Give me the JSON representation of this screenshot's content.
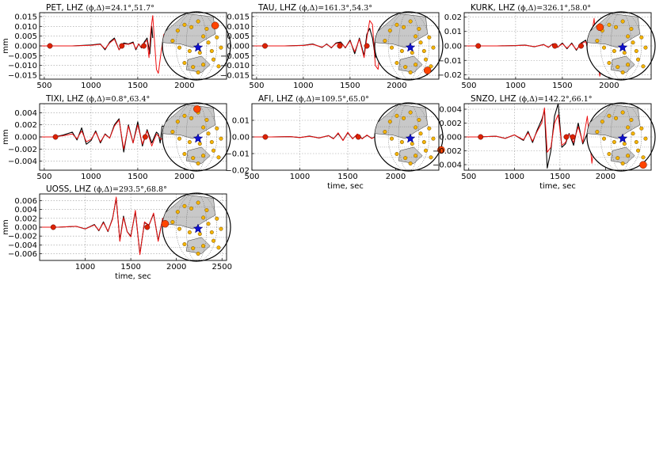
{
  "figure": {
    "y_unit_label": "mm",
    "x_axis_label": "time, sec"
  },
  "colors": {
    "observed": "#000000",
    "synthetic": "#ee1111",
    "marker": "#dd2200",
    "station_dot": "#f4b400",
    "event_star": "#1010cc",
    "land": "#c8c8c8",
    "highlight_station": "#ff4400"
  },
  "chart_data": [
    {
      "type": "line",
      "title": "PET, LHZ",
      "title_math": "(ϕ,Δ)=24.1°,51.7°",
      "xlim": [
        450,
        2450
      ],
      "ylim": [
        -0.017,
        0.017
      ],
      "xticks": [
        500,
        1000,
        1500,
        2000
      ],
      "yticks": [
        -0.015,
        -0.01,
        -0.005,
        0.0,
        0.005,
        0.01,
        0.015
      ],
      "ytick_labels": [
        "−0.015",
        "−0.010",
        "−0.005",
        "0.000",
        "0.005",
        "0.010",
        "0.015"
      ],
      "show_ylabel": true,
      "show_xlabel": false,
      "phase_markers": [
        {
          "t": 560,
          "v": 0.0
        },
        {
          "t": 1330,
          "v": 0.0
        },
        {
          "t": 1565,
          "v": 0.0
        }
      ],
      "series": [
        {
          "role": "observed",
          "x": [
            450,
            600,
            800,
            1000,
            1100,
            1150,
            1200,
            1250,
            1300,
            1350,
            1400,
            1450,
            1480,
            1510,
            1540,
            1570,
            1600,
            1630,
            1650,
            1660
          ],
          "y": [
            0,
            0,
            0,
            0.0005,
            0.001,
            -0.002,
            0.002,
            0.004,
            -0.002,
            0.0015,
            0.001,
            0.002,
            -0.002,
            0.001,
            -0.001,
            0.002,
            0.004,
            -0.004,
            0.01,
            0.004
          ]
        },
        {
          "role": "synthetic",
          "x": [
            450,
            600,
            800,
            1000,
            1100,
            1150,
            1200,
            1250,
            1300,
            1350,
            1400,
            1450,
            1480,
            1510,
            1540,
            1570,
            1600,
            1620,
            1640,
            1660,
            1680,
            1700,
            1720,
            1750,
            1780,
            1800,
            1830,
            1860
          ],
          "y": [
            0,
            0,
            0,
            0.0003,
            0.0008,
            -0.0015,
            0.0015,
            0.0035,
            -0.002,
            0.001,
            0.0008,
            0.0015,
            -0.0015,
            0.001,
            -0.0008,
            0.0015,
            0.003,
            -0.006,
            0.008,
            0.0155,
            0.002,
            -0.012,
            -0.014,
            -0.003,
            0.006,
            0.002,
            -0.004,
            0.0
          ]
        }
      ]
    },
    {
      "type": "line",
      "title": "TAU, LHZ",
      "title_math": "(ϕ,Δ)=161.3°,54.3°",
      "xlim": [
        450,
        2450
      ],
      "ylim": [
        -0.017,
        0.017
      ],
      "xticks": [
        500,
        1000,
        1500,
        2000
      ],
      "yticks": [
        -0.015,
        -0.01,
        -0.005,
        0.0,
        0.005,
        0.01,
        0.015
      ],
      "ytick_labels": [
        "−0.015",
        "−0.010",
        "−0.005",
        "0.000",
        "0.005",
        "0.010",
        "0.015"
      ],
      "show_ylabel": false,
      "show_xlabel": false,
      "phase_markers": [
        {
          "t": 590,
          "v": 0.0
        },
        {
          "t": 1390,
          "v": 0.0
        },
        {
          "t": 1680,
          "v": 0.0
        }
      ],
      "series": [
        {
          "role": "observed",
          "x": [
            450,
            600,
            800,
            1000,
            1100,
            1200,
            1250,
            1300,
            1350,
            1400,
            1450,
            1500,
            1550,
            1600,
            1650,
            1680,
            1710,
            1740,
            1770,
            1800,
            1820
          ],
          "y": [
            0,
            0,
            0,
            0.0003,
            0.001,
            -0.0008,
            0.001,
            -0.001,
            0.0015,
            0.002,
            -0.001,
            0.003,
            -0.004,
            0.004,
            -0.005,
            0.006,
            0.009,
            0.004,
            -0.006,
            0.002,
            0.0
          ]
        },
        {
          "role": "synthetic",
          "x": [
            450,
            600,
            800,
            1000,
            1100,
            1200,
            1250,
            1300,
            1350,
            1400,
            1450,
            1500,
            1550,
            1600,
            1650,
            1680,
            1710,
            1740,
            1770,
            1800,
            1830,
            1860
          ],
          "y": [
            0,
            0,
            0,
            0.0002,
            0.0008,
            -0.0006,
            0.0008,
            -0.0008,
            0.0012,
            0.0015,
            -0.0008,
            0.0025,
            -0.003,
            0.0035,
            -0.006,
            0.004,
            0.013,
            0.011,
            -0.01,
            -0.012,
            0.004,
            0.0
          ]
        }
      ]
    },
    {
      "type": "line",
      "title": "KURK, LHZ",
      "title_math": "(ϕ,Δ)=326.1°,58.0°",
      "xlim": [
        450,
        2450
      ],
      "ylim": [
        -0.023,
        0.023
      ],
      "xticks": [
        500,
        1000,
        1500,
        2000
      ],
      "yticks": [
        -0.02,
        -0.01,
        0.0,
        0.01,
        0.02
      ],
      "ytick_labels": [
        "−0.02",
        "−0.01",
        "0.00",
        "0.01",
        "0.02"
      ],
      "show_ylabel": false,
      "show_xlabel": false,
      "phase_markers": [
        {
          "t": 600,
          "v": 0.0
        },
        {
          "t": 1420,
          "v": 0.0
        },
        {
          "t": 1700,
          "v": 0.0
        }
      ],
      "series": [
        {
          "role": "observed",
          "x": [
            450,
            600,
            800,
            1000,
            1100,
            1200,
            1300,
            1350,
            1400,
            1450,
            1500,
            1550,
            1600,
            1650,
            1700,
            1750,
            1780,
            1810,
            1840,
            1860
          ],
          "y": [
            0,
            0,
            0,
            0.0002,
            0.0006,
            -0.0006,
            0.001,
            -0.001,
            0.0015,
            -0.001,
            0.002,
            -0.002,
            0.002,
            -0.003,
            0.002,
            0.004,
            -0.005,
            0.006,
            0.007,
            0.0
          ]
        },
        {
          "role": "synthetic",
          "x": [
            450,
            600,
            800,
            1000,
            1100,
            1200,
            1300,
            1350,
            1400,
            1450,
            1500,
            1550,
            1600,
            1650,
            1700,
            1750,
            1780,
            1810,
            1840,
            1870,
            1900,
            1930,
            1950
          ],
          "y": [
            0,
            0,
            0,
            0.0002,
            0.0005,
            -0.0005,
            0.0008,
            -0.0008,
            0.0012,
            -0.0008,
            0.0015,
            -0.0015,
            0.0015,
            -0.0025,
            0.0015,
            0.003,
            -0.004,
            0.006,
            0.019,
            -0.006,
            -0.021,
            -0.008,
            0.0
          ]
        }
      ]
    },
    {
      "type": "line",
      "title": "TIXI, LHZ",
      "title_math": "(ϕ,Δ)=0.8°,63.4°",
      "xlim": [
        450,
        2450
      ],
      "ylim": [
        -0.0055,
        0.0055
      ],
      "xticks": [
        500,
        1000,
        1500,
        2000
      ],
      "yticks": [
        -0.004,
        -0.002,
        0.0,
        0.002,
        0.004
      ],
      "ytick_labels": [
        "−0.004",
        "−0.002",
        "0.000",
        "0.002",
        "0.004"
      ],
      "show_ylabel": true,
      "show_xlabel": false,
      "phase_markers": [
        {
          "t": 620,
          "v": 0.0
        },
        {
          "t": 1580,
          "v": 0.0
        }
      ],
      "series": [
        {
          "role": "observed",
          "x": [
            450,
            600,
            700,
            800,
            850,
            900,
            950,
            1000,
            1050,
            1100,
            1150,
            1200,
            1250,
            1300,
            1350,
            1400,
            1450,
            1500,
            1550,
            1600,
            1650,
            1700,
            1720,
            1740,
            1760,
            1780
          ],
          "y": [
            0,
            0,
            0.0003,
            0.0008,
            -0.0005,
            0.0015,
            -0.0012,
            -0.0006,
            0.001,
            -0.001,
            0.0005,
            -0.0002,
            0.002,
            0.003,
            -0.0025,
            0.002,
            -0.001,
            0.0025,
            -0.0015,
            0.0012,
            -0.001,
            0.0008,
            0.0005,
            -0.001,
            0.0018,
            0.0018
          ]
        },
        {
          "role": "synthetic",
          "x": [
            450,
            600,
            700,
            800,
            850,
            900,
            950,
            1000,
            1050,
            1100,
            1150,
            1200,
            1250,
            1300,
            1350,
            1400,
            1450,
            1500,
            1550,
            1600,
            1650,
            1700,
            1750,
            1800,
            1850,
            1900,
            1950,
            1990,
            2020,
            2050
          ],
          "y": [
            0,
            0,
            0.0002,
            0.0005,
            -0.0003,
            0.001,
            -0.0008,
            -0.0004,
            0.0008,
            -0.0008,
            0.0004,
            -0.0002,
            0.0018,
            0.0028,
            -0.002,
            0.0018,
            -0.001,
            0.002,
            -0.0012,
            0.001,
            -0.0015,
            0.0005,
            -0.0004,
            0.0003,
            -0.0002,
            0.0001,
            0.0,
            0.005,
            -0.005,
            0.0
          ]
        }
      ]
    },
    {
      "type": "line",
      "title": "AFI, LHZ",
      "title_math": "(ϕ,Δ)=109.5°,65.0°",
      "xlim": [
        500,
        2450
      ],
      "ylim": [
        -0.02,
        0.02
      ],
      "xticks": [
        500,
        1000,
        1500,
        2000
      ],
      "yticks": [
        -0.02,
        -0.01,
        0.0,
        0.01
      ],
      "ytick_labels": [
        "−0.02",
        "−0.01",
        "0.00",
        "0.01"
      ],
      "show_ylabel": false,
      "show_xlabel": true,
      "phase_markers": [
        {
          "t": 640,
          "v": 0.0
        },
        {
          "t": 1610,
          "v": 0.0
        }
      ],
      "series": [
        {
          "role": "observed",
          "x": [
            500,
            700,
            900,
            1000,
            1100,
            1200,
            1300,
            1350,
            1400,
            1450,
            1500,
            1550,
            1600,
            1650,
            1700,
            1750,
            1800,
            1850,
            1900,
            1950,
            1990
          ],
          "y": [
            0,
            0,
            0.0002,
            -0.0004,
            0.0005,
            -0.0006,
            0.0008,
            -0.001,
            0.002,
            -0.002,
            0.0025,
            -0.001,
            0.0015,
            -0.001,
            0.001,
            -0.0008,
            0.0005,
            -0.0004,
            0.0003,
            -0.0002,
            0.0
          ]
        },
        {
          "role": "synthetic",
          "x": [
            500,
            700,
            900,
            1000,
            1100,
            1200,
            1300,
            1350,
            1400,
            1450,
            1500,
            1550,
            1600,
            1650,
            1700,
            1750,
            1800,
            1850,
            1900,
            1950,
            1990,
            2010,
            2030,
            2050
          ],
          "y": [
            0,
            0,
            0.0002,
            -0.0003,
            0.0004,
            -0.0005,
            0.0007,
            -0.0012,
            0.0025,
            -0.0022,
            0.0028,
            -0.0012,
            0.0018,
            -0.0012,
            0.0012,
            -0.001,
            0.0006,
            -0.0005,
            0.0004,
            -0.0003,
            0.0,
            0.01,
            -0.018,
            0.0
          ]
        }
      ]
    },
    {
      "type": "line",
      "title": "SNZO, LHZ",
      "title_math": "(ϕ,Δ)=142.2°,66.1°",
      "xlim": [
        450,
        2500
      ],
      "ylim": [
        -0.0048,
        0.0048
      ],
      "xticks": [
        500,
        1000,
        1500,
        2000
      ],
      "yticks": [
        -0.004,
        -0.002,
        0.0,
        0.002,
        0.004
      ],
      "ytick_labels": [
        "−0.004",
        "−0.002",
        "0.000",
        "0.002",
        "0.004"
      ],
      "show_ylabel": false,
      "show_xlabel": true,
      "phase_markers": [
        {
          "t": 630,
          "v": 0.0
        },
        {
          "t": 1570,
          "v": 0.0
        },
        {
          "t": 1640,
          "v": 0.0
        }
      ],
      "series": [
        {
          "role": "observed",
          "x": [
            450,
            600,
            800,
            900,
            1000,
            1100,
            1150,
            1200,
            1250,
            1300,
            1330,
            1360,
            1400,
            1440,
            1480,
            1520,
            1560,
            1600,
            1650,
            1700,
            1750,
            1800,
            1850,
            1900
          ],
          "y": [
            0,
            0,
            0.0001,
            -0.0002,
            0.0003,
            -0.0005,
            0.0008,
            -0.0008,
            0.001,
            0.0025,
            0.0038,
            -0.0045,
            -0.002,
            0.003,
            0.0048,
            -0.0015,
            -0.001,
            0.0005,
            -0.0012,
            0.002,
            -0.001,
            0.0005,
            -0.0003,
            0.0
          ]
        },
        {
          "role": "synthetic",
          "x": [
            450,
            600,
            800,
            900,
            1000,
            1100,
            1150,
            1200,
            1250,
            1300,
            1330,
            1360,
            1400,
            1440,
            1480,
            1520,
            1560,
            1600,
            1650,
            1700,
            1750,
            1800,
            1850,
            1900,
            1950,
            2000,
            2030,
            2060
          ],
          "y": [
            0,
            0,
            0.0001,
            -0.0002,
            0.0003,
            -0.0004,
            0.0006,
            -0.0006,
            0.0008,
            0.002,
            0.0042,
            -0.0022,
            -0.0015,
            0.002,
            0.0032,
            -0.0012,
            -0.0008,
            0.0004,
            -0.0008,
            0.0015,
            -0.0008,
            0.003,
            -0.0038,
            0.0015,
            -0.001,
            0.0005,
            -0.004,
            0.0
          ]
        }
      ]
    },
    {
      "type": "line",
      "title": "UOSS, LHZ",
      "title_math": "(ϕ,Δ)=293.5°,68.8°",
      "xlim": [
        500,
        2550
      ],
      "ylim": [
        -0.0075,
        0.0075
      ],
      "xticks": [
        1000,
        1500,
        2000,
        2500
      ],
      "yticks": [
        -0.006,
        -0.004,
        -0.002,
        0.0,
        0.002,
        0.004,
        0.006
      ],
      "ytick_labels": [
        "−0.006",
        "−0.004",
        "−0.002",
        "0.000",
        "0.002",
        "0.004",
        "0.006"
      ],
      "show_ylabel": true,
      "show_xlabel": true,
      "phase_markers": [
        {
          "t": 650,
          "v": 0.0
        },
        {
          "t": 1680,
          "v": 0.0
        }
      ],
      "series": [
        {
          "role": "observed",
          "x": [
            500,
            700,
            900,
            1000,
            1100,
            1150,
            1200,
            1250,
            1300,
            1340,
            1380,
            1420,
            1460,
            1500,
            1550,
            1600,
            1650,
            1700,
            1750,
            1800,
            1850,
            1900,
            1950,
            2000
          ],
          "y": [
            0,
            0,
            0.0002,
            -0.0004,
            0.0006,
            -0.0008,
            0.0012,
            -0.001,
            0.002,
            0.0065,
            -0.003,
            0.0025,
            -0.001,
            -0.002,
            0.0035,
            -0.006,
            0.001,
            0.0005,
            0.003,
            -0.003,
            0.002,
            -0.0015,
            0.001,
            0.0
          ]
        },
        {
          "role": "synthetic",
          "x": [
            500,
            700,
            900,
            1000,
            1100,
            1150,
            1200,
            1250,
            1300,
            1340,
            1380,
            1420,
            1460,
            1500,
            1550,
            1600,
            1650,
            1700,
            1750,
            1800,
            1850,
            1900,
            1950,
            2000,
            2030,
            2060
          ],
          "y": [
            0,
            0,
            0.0002,
            -0.0004,
            0.0005,
            -0.0007,
            0.001,
            -0.0009,
            0.0018,
            0.0068,
            -0.0032,
            0.0022,
            -0.001,
            -0.0022,
            0.0038,
            -0.0062,
            0.0012,
            0.0004,
            0.0032,
            -0.0032,
            0.002,
            -0.0014,
            0.0008,
            -0.0005,
            0.006,
            0.0
          ]
        }
      ]
    }
  ]
}
